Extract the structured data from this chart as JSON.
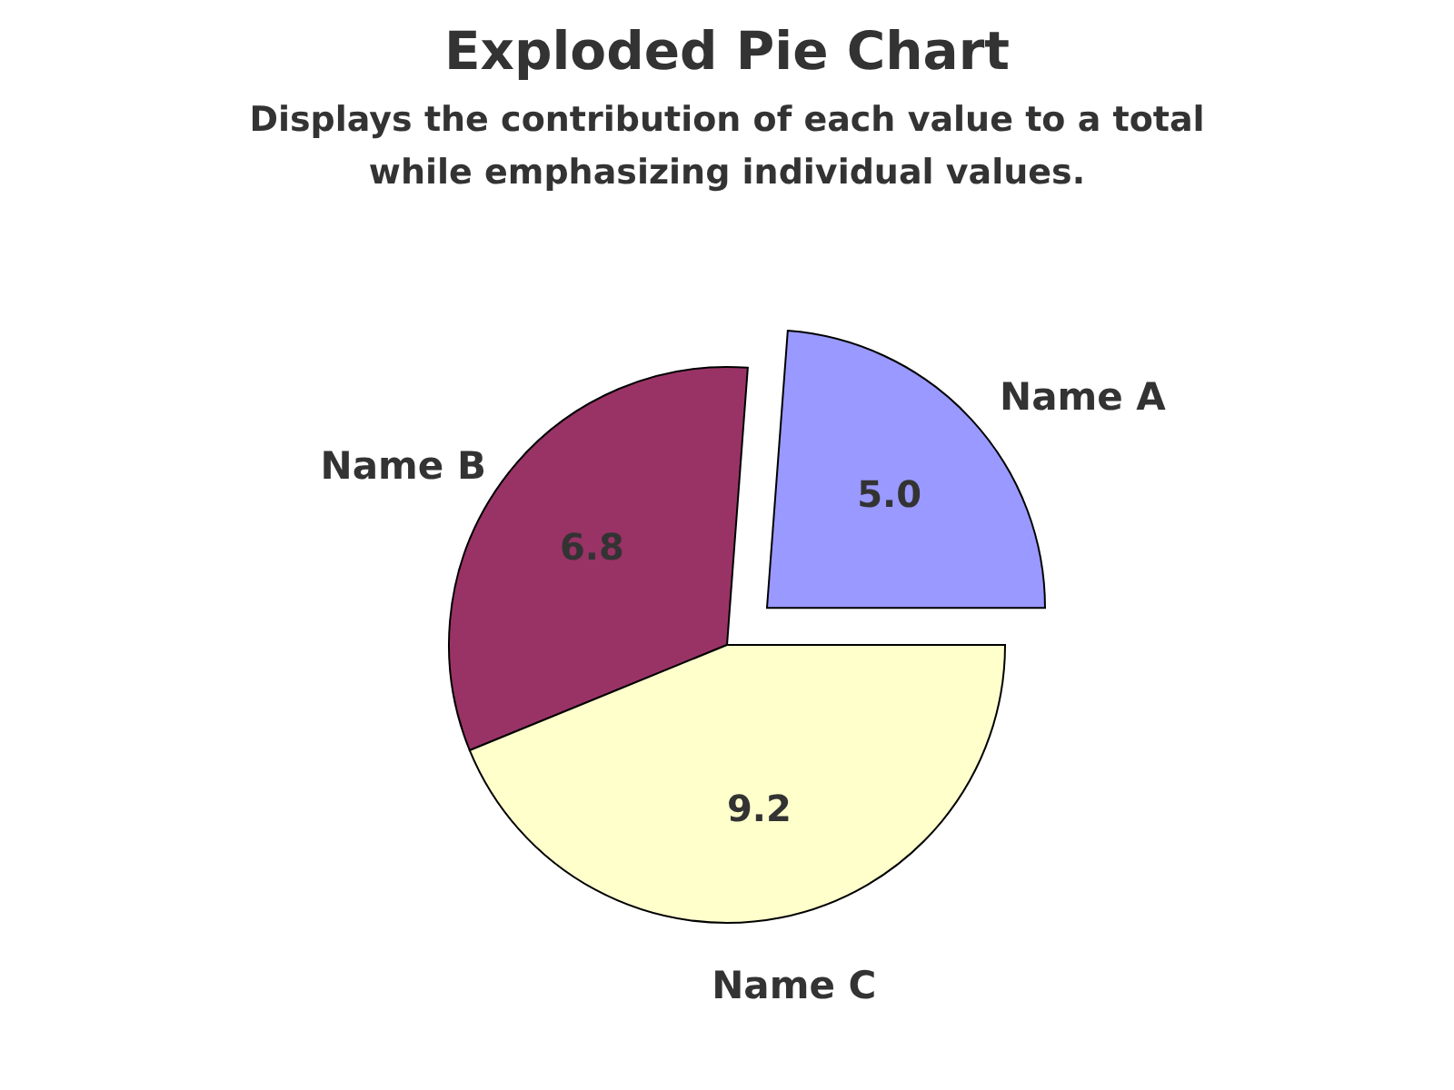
{
  "chart_data": {
    "type": "pie",
    "title": "Exploded Pie Chart",
    "subtitle": "Displays the contribution of each value to a total while emphasizing individual values.",
    "categories": [
      "Name A",
      "Name B",
      "Name C"
    ],
    "values": [
      5.0,
      6.8,
      9.2
    ],
    "value_labels": [
      "5.0",
      "6.8",
      "9.2"
    ],
    "colors": [
      "#9999ff",
      "#993366",
      "#ffffcc"
    ]
  }
}
